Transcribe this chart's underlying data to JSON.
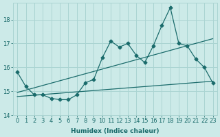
{
  "xlabel": "Humidex (Indice chaleur)",
  "xlim": [
    -0.5,
    23.5
  ],
  "ylim": [
    14,
    18.7
  ],
  "yticks": [
    14,
    15,
    16,
    17,
    18
  ],
  "xtick_labels": [
    "0",
    "1",
    "2",
    "3",
    "4",
    "5",
    "6",
    "7",
    "8",
    "9",
    "10",
    "11",
    "12",
    "13",
    "14",
    "15",
    "16",
    "17",
    "18",
    "19",
    "20",
    "21",
    "22",
    "23"
  ],
  "background_color": "#cceae8",
  "grid_color": "#aad4d2",
  "line_color": "#1a6b6b",
  "main_data": [
    15.8,
    15.2,
    14.85,
    14.85,
    14.7,
    14.65,
    14.65,
    14.85,
    15.35,
    15.5,
    16.4,
    17.1,
    16.85,
    17.0,
    16.5,
    16.2,
    16.9,
    17.75,
    18.5,
    17.0,
    16.9,
    16.35,
    16.0,
    15.35
  ],
  "trend1_start_y": 14.95,
  "trend1_end_y": 17.2,
  "trend2_start_y": 14.78,
  "trend2_end_y": 15.42,
  "font_color": "#1a6b6b",
  "axis_fontsize": 6.5,
  "tick_fontsize": 6
}
